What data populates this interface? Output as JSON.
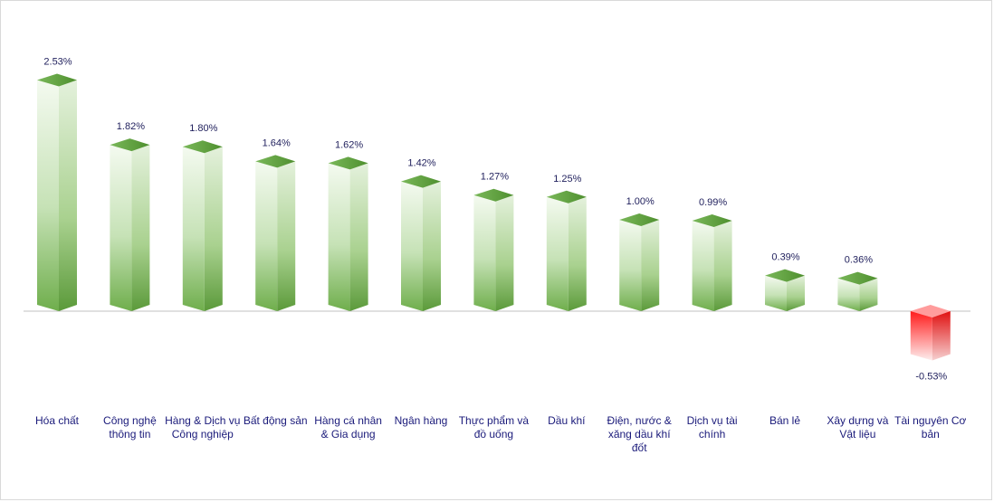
{
  "chart_data": {
    "type": "bar",
    "title": "",
    "xlabel": "",
    "ylabel": "",
    "ylim": [
      -0.9,
      2.9
    ],
    "grid": false,
    "legend": "none",
    "categories": [
      "Hóa chất",
      "Công nghệ thông tin",
      "Hàng & Dịch vụ Công nghiệp",
      "Bất động sản",
      "Hàng cá nhân & Gia dụng",
      "Ngân hàng",
      "Thực phẩm và đồ uống",
      "Dầu khí",
      "Điện, nước & xăng dầu khí đốt",
      "Dịch vụ tài chính",
      "Bán lẻ",
      "Xây dựng và Vật liệu",
      "Tài nguyên Cơ bản"
    ],
    "values": [
      2.53,
      1.82,
      1.8,
      1.64,
      1.62,
      1.42,
      1.27,
      1.25,
      1.0,
      0.99,
      0.39,
      0.36,
      -0.53
    ],
    "value_labels": [
      "2.53%",
      "1.82%",
      "1.80%",
      "1.64%",
      "1.62%",
      "1.42%",
      "1.27%",
      "1.25%",
      "1.00%",
      "0.99%",
      "0.39%",
      "0.36%",
      "-0.53%"
    ],
    "colors": {
      "positive": "#6aa84f",
      "positive_light": "#f2f9ee",
      "positive_top": "#5a9e3a",
      "negative": "#ff2020",
      "negative_light": "#fde8e8",
      "negative_top": "#ff8080",
      "baseline": "#c0c0c0",
      "label_text": "#1f1f5c",
      "category_text": "#1a1a7a"
    }
  }
}
